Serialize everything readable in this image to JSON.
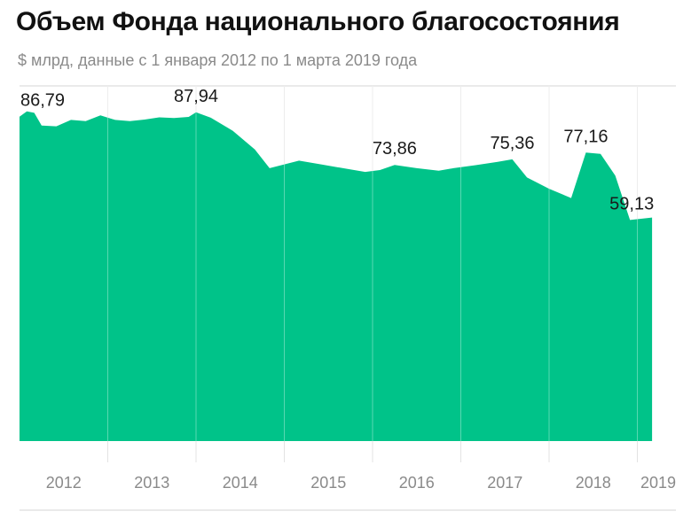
{
  "chart_data": {
    "type": "area",
    "title": "Объем Фонда национального благосостояния",
    "subtitle": "$ млрд, данные с 1 января 2012 по 1 марта 2019 года",
    "xlabel": "",
    "ylabel": "",
    "ylim": [
      0,
      95
    ],
    "grid": "vertical",
    "legend": "none",
    "color": "#00c389",
    "x_ticks": [
      "2012",
      "2013",
      "2014",
      "2015",
      "2016",
      "2017",
      "2018",
      "2019"
    ],
    "series": [
      {
        "values": [
          {
            "x": "2012-01",
            "y": 86.79
          },
          {
            "x": "2012-02",
            "y": 88.2
          },
          {
            "x": "2012-03",
            "y": 87.8
          },
          {
            "x": "2012-04",
            "y": 84.4
          },
          {
            "x": "2012-06",
            "y": 84.2
          },
          {
            "x": "2012-08",
            "y": 85.9
          },
          {
            "x": "2012-10",
            "y": 85.6
          },
          {
            "x": "2012-12",
            "y": 87.1
          },
          {
            "x": "2013-02",
            "y": 85.9
          },
          {
            "x": "2013-04",
            "y": 85.6
          },
          {
            "x": "2013-06",
            "y": 86.0
          },
          {
            "x": "2013-08",
            "y": 86.6
          },
          {
            "x": "2013-10",
            "y": 86.4
          },
          {
            "x": "2013-12",
            "y": 86.7
          },
          {
            "x": "2014-01",
            "y": 87.94
          },
          {
            "x": "2014-03",
            "y": 86.5
          },
          {
            "x": "2014-06",
            "y": 83.0
          },
          {
            "x": "2014-09",
            "y": 78.0
          },
          {
            "x": "2014-11",
            "y": 73.0
          },
          {
            "x": "2015-01",
            "y": 74.0
          },
          {
            "x": "2015-03",
            "y": 75.0
          },
          {
            "x": "2015-06",
            "y": 74.0
          },
          {
            "x": "2015-09",
            "y": 73.0
          },
          {
            "x": "2015-12",
            "y": 72.0
          },
          {
            "x": "2016-02",
            "y": 72.5
          },
          {
            "x": "2016-04",
            "y": 73.86
          },
          {
            "x": "2016-07",
            "y": 73.0
          },
          {
            "x": "2016-10",
            "y": 72.3
          },
          {
            "x": "2016-12",
            "y": 73.0
          },
          {
            "x": "2017-03",
            "y": 73.8
          },
          {
            "x": "2017-06",
            "y": 74.7
          },
          {
            "x": "2017-08",
            "y": 75.36
          },
          {
            "x": "2017-10",
            "y": 70.5
          },
          {
            "x": "2018-01",
            "y": 67.5
          },
          {
            "x": "2018-04",
            "y": 65.0
          },
          {
            "x": "2018-06",
            "y": 77.16
          },
          {
            "x": "2018-08",
            "y": 76.8
          },
          {
            "x": "2018-10",
            "y": 71.0
          },
          {
            "x": "2018-12",
            "y": 59.13
          },
          {
            "x": "2019-03",
            "y": 59.8
          }
        ]
      }
    ],
    "data_labels": [
      {
        "x": "2012-01",
        "text": "86,79"
      },
      {
        "x": "2014-01",
        "text": "87,94"
      },
      {
        "x": "2016-04",
        "text": "73,86"
      },
      {
        "x": "2017-08",
        "text": "75,36"
      },
      {
        "x": "2018-06",
        "text": "77,16"
      },
      {
        "x": "2018-12",
        "text": "59,13"
      }
    ]
  }
}
